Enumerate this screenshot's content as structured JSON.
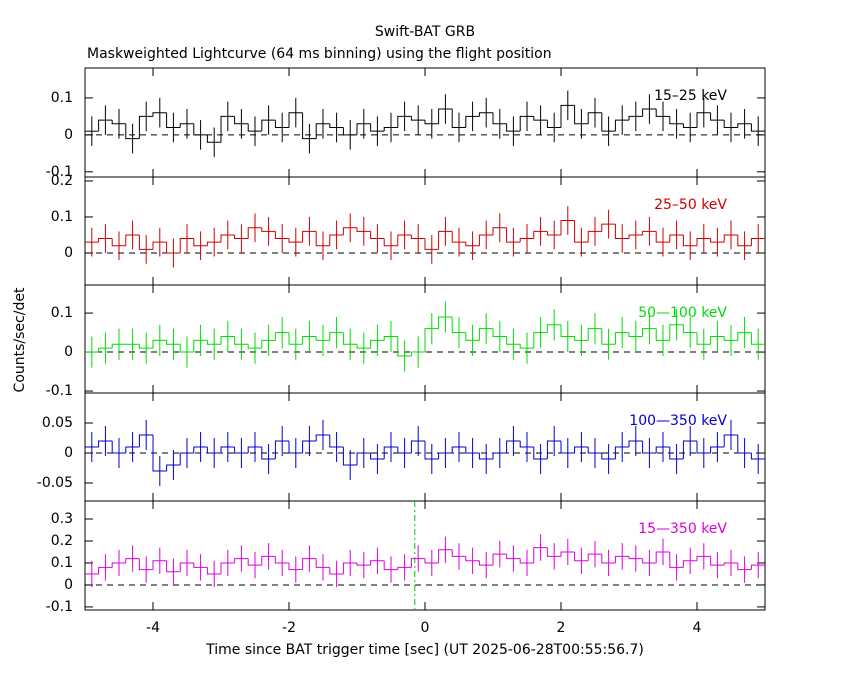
{
  "chart_data": [
    {
      "type": "step",
      "title": "Swift-BAT GRB",
      "subtitle": "Maskweighted Lightcurve (64 ms binning) using the flight position",
      "x": [
        -4.9,
        -4.7,
        -4.5,
        -4.3,
        -4.1,
        -3.9,
        -3.7,
        -3.5,
        -3.3,
        -3.1,
        -2.9,
        -2.7,
        -2.5,
        -2.3,
        -2.1,
        -1.9,
        -1.7,
        -1.5,
        -1.3,
        -1.1,
        -0.9,
        -0.7,
        -0.5,
        -0.3,
        -0.1,
        0.1,
        0.3,
        0.5,
        0.7,
        0.9,
        1.1,
        1.3,
        1.5,
        1.7,
        1.9,
        2.1,
        2.3,
        2.5,
        2.7,
        2.9,
        3.1,
        3.3,
        3.5,
        3.7,
        3.9,
        4.1,
        4.3,
        4.5,
        4.7,
        4.9
      ],
      "series": [
        {
          "name": "15–25 keV",
          "color": "#000000",
          "error": 0.04,
          "values": [
            0.01,
            0.04,
            0.03,
            -0.01,
            0.05,
            0.06,
            0.02,
            0.03,
            0.0,
            -0.02,
            0.05,
            0.03,
            0.01,
            0.04,
            0.02,
            0.06,
            -0.01,
            0.03,
            0.02,
            0.0,
            0.03,
            0.01,
            0.02,
            0.05,
            0.04,
            0.03,
            0.07,
            0.02,
            0.05,
            0.06,
            0.03,
            0.01,
            0.05,
            0.04,
            0.02,
            0.08,
            0.03,
            0.06,
            0.01,
            0.04,
            0.05,
            0.07,
            0.05,
            0.03,
            0.02,
            0.06,
            0.04,
            0.02,
            0.03,
            0.01
          ]
        }
      ],
      "ylim": [
        -0.114,
        0.181
      ],
      "yticks": [
        -0.1,
        0,
        0.1
      ]
    },
    {
      "type": "step",
      "x": [
        -4.9,
        -4.7,
        -4.5,
        -4.3,
        -4.1,
        -3.9,
        -3.7,
        -3.5,
        -3.3,
        -3.1,
        -2.9,
        -2.7,
        -2.5,
        -2.3,
        -2.1,
        -1.9,
        -1.7,
        -1.5,
        -1.3,
        -1.1,
        -0.9,
        -0.7,
        -0.5,
        -0.3,
        -0.1,
        0.1,
        0.3,
        0.5,
        0.7,
        0.9,
        1.1,
        1.3,
        1.5,
        1.7,
        1.9,
        2.1,
        2.3,
        2.5,
        2.7,
        2.9,
        3.1,
        3.3,
        3.5,
        3.7,
        3.9,
        4.1,
        4.3,
        4.5,
        4.7,
        4.9
      ],
      "series": [
        {
          "name": "25–50 keV",
          "color": "#cc0000",
          "error": 0.04,
          "values": [
            0.03,
            0.04,
            0.02,
            0.05,
            0.01,
            0.03,
            0.0,
            0.04,
            0.02,
            0.03,
            0.05,
            0.04,
            0.07,
            0.06,
            0.04,
            0.03,
            0.06,
            0.02,
            0.05,
            0.07,
            0.06,
            0.04,
            0.02,
            0.05,
            0.04,
            0.01,
            0.06,
            0.03,
            0.02,
            0.05,
            0.07,
            0.03,
            0.04,
            0.06,
            0.05,
            0.09,
            0.03,
            0.06,
            0.08,
            0.04,
            0.05,
            0.06,
            0.03,
            0.05,
            0.02,
            0.04,
            0.03,
            0.05,
            0.02,
            0.04
          ]
        }
      ],
      "ylim": [
        -0.089,
        0.211
      ],
      "yticks": [
        0,
        0.1,
        0.2
      ]
    },
    {
      "type": "step",
      "y_label": "Counts/sec/det",
      "x": [
        -4.9,
        -4.7,
        -4.5,
        -4.3,
        -4.1,
        -3.9,
        -3.7,
        -3.5,
        -3.3,
        -3.1,
        -2.9,
        -2.7,
        -2.5,
        -2.3,
        -2.1,
        -1.9,
        -1.7,
        -1.5,
        -1.3,
        -1.1,
        -0.9,
        -0.7,
        -0.5,
        -0.3,
        -0.1,
        0.1,
        0.3,
        0.5,
        0.7,
        0.9,
        1.1,
        1.3,
        1.5,
        1.7,
        1.9,
        2.1,
        2.3,
        2.5,
        2.7,
        2.9,
        3.1,
        3.3,
        3.5,
        3.7,
        3.9,
        4.1,
        4.3,
        4.5,
        4.7,
        4.9
      ],
      "series": [
        {
          "name": "50—100 keV",
          "color": "#00dd00",
          "error": 0.04,
          "values": [
            0.0,
            0.01,
            0.02,
            0.02,
            0.01,
            0.03,
            0.02,
            0.0,
            0.03,
            0.02,
            0.04,
            0.02,
            0.01,
            0.03,
            0.05,
            0.02,
            0.04,
            0.03,
            0.05,
            0.02,
            0.01,
            0.03,
            0.04,
            -0.01,
            0.0,
            0.06,
            0.09,
            0.05,
            0.03,
            0.06,
            0.04,
            0.02,
            0.01,
            0.05,
            0.07,
            0.04,
            0.03,
            0.06,
            0.02,
            0.05,
            0.04,
            0.06,
            0.03,
            0.07,
            0.05,
            0.02,
            0.04,
            0.03,
            0.05,
            0.02
          ]
        }
      ],
      "ylim": [
        -0.105,
        0.172
      ],
      "yticks": [
        -0.1,
        0,
        0.1
      ]
    },
    {
      "type": "step",
      "x": [
        -4.9,
        -4.7,
        -4.5,
        -4.3,
        -4.1,
        -3.9,
        -3.7,
        -3.5,
        -3.3,
        -3.1,
        -2.9,
        -2.7,
        -2.5,
        -2.3,
        -2.1,
        -1.9,
        -1.7,
        -1.5,
        -1.3,
        -1.1,
        -0.9,
        -0.7,
        -0.5,
        -0.3,
        -0.1,
        0.1,
        0.3,
        0.5,
        0.7,
        0.9,
        1.1,
        1.3,
        1.5,
        1.7,
        1.9,
        2.1,
        2.3,
        2.5,
        2.7,
        2.9,
        3.1,
        3.3,
        3.5,
        3.7,
        3.9,
        4.1,
        4.3,
        4.5,
        4.7,
        4.9
      ],
      "series": [
        {
          "name": "100—350 keV",
          "color": "#0000cc",
          "error": 0.025,
          "values": [
            0.01,
            0.02,
            0.0,
            0.01,
            0.03,
            -0.03,
            -0.02,
            0.0,
            0.01,
            0.0,
            0.01,
            0.0,
            0.01,
            -0.01,
            0.02,
            0.0,
            0.02,
            0.03,
            0.01,
            -0.02,
            0.0,
            -0.01,
            0.01,
            0.0,
            0.02,
            -0.01,
            0.0,
            0.01,
            0.0,
            -0.01,
            0.0,
            0.02,
            0.01,
            -0.01,
            0.02,
            0.0,
            0.01,
            0.0,
            -0.01,
            0.01,
            0.02,
            0.0,
            0.01,
            -0.01,
            0.02,
            0.0,
            0.01,
            0.03,
            0.0,
            -0.01
          ]
        }
      ],
      "ylim": [
        -0.08,
        0.1
      ],
      "yticks": [
        -0.05,
        0,
        0.05
      ]
    },
    {
      "type": "step",
      "x_label": "Time since BAT trigger time [sec] (UT 2025-06-28T00:55:56.7)",
      "vline": -0.15,
      "x": [
        -4.9,
        -4.7,
        -4.5,
        -4.3,
        -4.1,
        -3.9,
        -3.7,
        -3.5,
        -3.3,
        -3.1,
        -2.9,
        -2.7,
        -2.5,
        -2.3,
        -2.1,
        -1.9,
        -1.7,
        -1.5,
        -1.3,
        -1.1,
        -0.9,
        -0.7,
        -0.5,
        -0.3,
        -0.1,
        0.1,
        0.3,
        0.5,
        0.7,
        0.9,
        1.1,
        1.3,
        1.5,
        1.7,
        1.9,
        2.1,
        2.3,
        2.5,
        2.7,
        2.9,
        3.1,
        3.3,
        3.5,
        3.7,
        3.9,
        4.1,
        4.3,
        4.5,
        4.7,
        4.9
      ],
      "series": [
        {
          "name": "15—350 keV",
          "color": "#dd00dd",
          "error": 0.06,
          "values": [
            0.05,
            0.08,
            0.1,
            0.12,
            0.07,
            0.11,
            0.06,
            0.1,
            0.08,
            0.05,
            0.1,
            0.12,
            0.09,
            0.13,
            0.1,
            0.07,
            0.12,
            0.08,
            0.05,
            0.1,
            0.09,
            0.11,
            0.07,
            0.08,
            0.12,
            0.1,
            0.16,
            0.13,
            0.11,
            0.09,
            0.14,
            0.12,
            0.1,
            0.17,
            0.13,
            0.15,
            0.11,
            0.14,
            0.1,
            0.13,
            0.12,
            0.1,
            0.15,
            0.08,
            0.11,
            0.13,
            0.09,
            0.1,
            0.07,
            0.09
          ]
        }
      ],
      "ylim": [
        -0.114,
        0.382
      ],
      "yticks": [
        -0.1,
        0,
        0.1,
        0.2,
        0.3
      ],
      "xlim": [
        -5,
        5
      ],
      "xticks": [
        -4,
        -2,
        0,
        2,
        4
      ]
    }
  ]
}
